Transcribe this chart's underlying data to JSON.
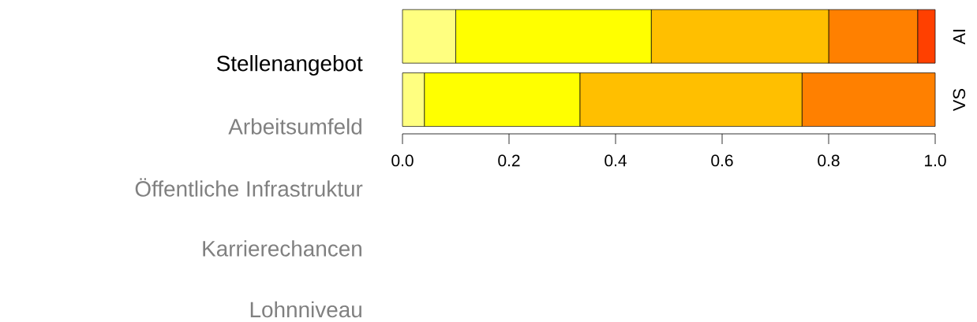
{
  "chart_data": {
    "type": "bar",
    "orientation": "horizontal",
    "stacked": true,
    "categories": [
      "AI",
      "VS"
    ],
    "series": [
      {
        "color": "#ffff80",
        "values": [
          0.1,
          0.041
        ]
      },
      {
        "color": "#ffff00",
        "values": [
          0.367,
          0.292
        ]
      },
      {
        "color": "#ffbf00",
        "values": [
          0.333,
          0.417
        ]
      },
      {
        "color": "#ff8000",
        "values": [
          0.167,
          0.25
        ]
      },
      {
        "color": "#ff4000",
        "values": [
          0.033,
          0
        ]
      }
    ],
    "xlim": [
      0,
      1
    ],
    "xticks": [
      {
        "value": 0,
        "label": "0.0"
      },
      {
        "value": 0.2,
        "label": "0.2"
      },
      {
        "value": 0.4,
        "label": "0.4"
      },
      {
        "value": 0.6,
        "label": "0.6"
      },
      {
        "value": 0.8,
        "label": "0.8"
      },
      {
        "value": 1,
        "label": "1.0"
      }
    ],
    "annotations": [
      "Stellenangebot",
      "Arbeitsumfeld",
      "Öffentliche Infrastruktur",
      "Karrierechancen",
      "Lohnniveau"
    ],
    "grid": false
  }
}
